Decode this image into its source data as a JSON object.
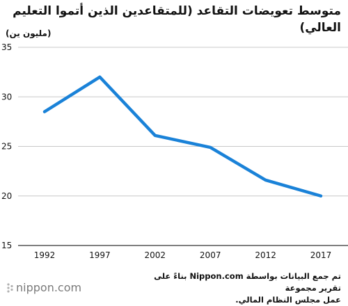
{
  "header": {
    "title": "متوسط تعويضات التقاعد (للمتقاعدين الذين أتموا التعليم العالي)",
    "unit": "(مليون ين)"
  },
  "chart_data": {
    "type": "line",
    "categories": [
      "1992",
      "1997",
      "2002",
      "2007",
      "2012",
      "2017"
    ],
    "series": [
      {
        "values": [
          28.5,
          32.0,
          26.1,
          24.9,
          21.6,
          20.0
        ]
      }
    ],
    "ylim": [
      15,
      35
    ],
    "yticks": [
      "35",
      "30",
      "25",
      "20",
      "15"
    ],
    "grid": true,
    "line_color": "#1a82d8"
  },
  "source": {
    "line1": "تم جمع البيانات بواسطة Nippon.com بناءً على تقرير مجموعة",
    "line2": "عمل مجلس النظام المالي."
  },
  "logo": {
    "icon": "nippon-logo-icon",
    "text": "nippon.com"
  }
}
